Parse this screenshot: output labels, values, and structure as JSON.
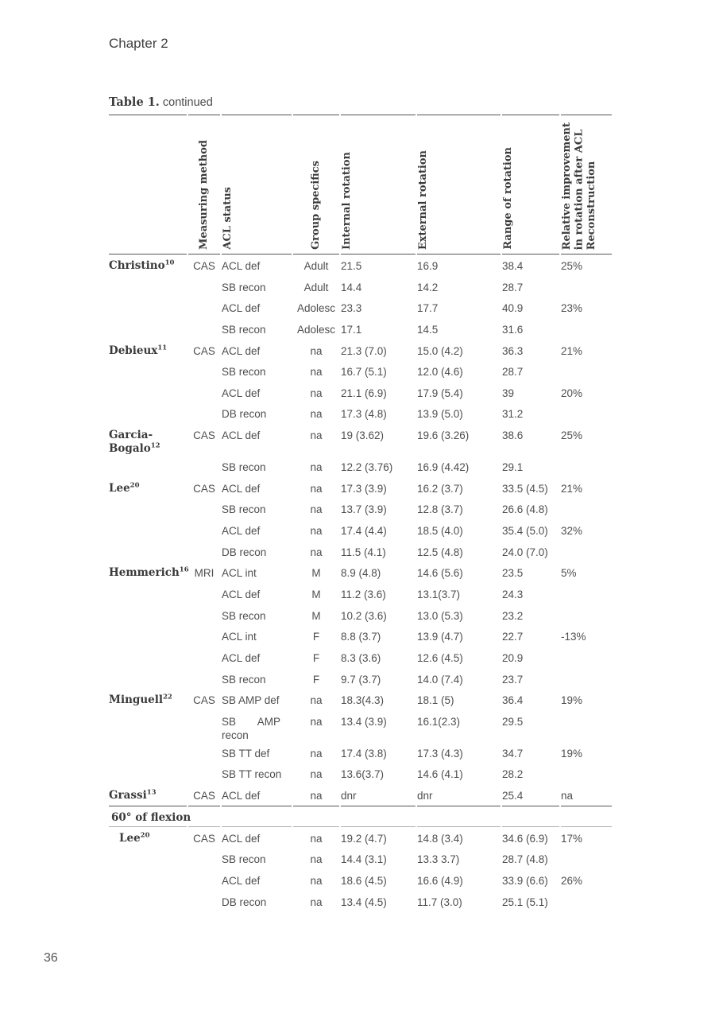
{
  "page": {
    "chapter": "Chapter 2",
    "number": "36"
  },
  "table": {
    "title": "Table 1.",
    "subtitle": "continued",
    "columns": [
      "",
      "Measuring method",
      "ACL status",
      "Group specifics",
      "Internal rotation",
      "External rotation",
      "Range of rotation",
      "Relative improvement\nin rotation after ACL\nReconstruction"
    ],
    "rows": [
      {
        "study": "Christino",
        "sup": "10",
        "method": "CAS",
        "status": "ACL def",
        "group": "Adult",
        "ir": "21.5",
        "er": "16.9",
        "rom": "38.4",
        "imp": "25%"
      },
      {
        "status": "SB recon",
        "group": "Adult",
        "ir": "14.4",
        "er": "14.2",
        "rom": "28.7",
        "imp": ""
      },
      {
        "status": "ACL def",
        "group": "Adolesc",
        "ir": "23.3",
        "er": "17.7",
        "rom": "40.9",
        "imp": "23%"
      },
      {
        "status": "SB recon",
        "group": "Adolesc",
        "ir": "17.1",
        "er": "14.5",
        "rom": "31.6",
        "imp": ""
      },
      {
        "study": "Debieux",
        "sup": "11",
        "method": "CAS",
        "status": "ACL def",
        "group": "na",
        "ir": "21.3 (7.0)",
        "er": "15.0 (4.2)",
        "rom": "36.3",
        "imp": "21%"
      },
      {
        "status": "SB recon",
        "group": "na",
        "ir": "16.7 (5.1)",
        "er": "12.0 (4.6)",
        "rom": "28.7",
        "imp": ""
      },
      {
        "status": "ACL def",
        "group": "na",
        "ir": "21.1 (6.9)",
        "er": "17.9 (5.4)",
        "rom": "39",
        "imp": "20%"
      },
      {
        "status": "DB recon",
        "group": "na",
        "ir": "17.3 (4.8)",
        "er": "13.9 (5.0)",
        "rom": "31.2",
        "imp": ""
      },
      {
        "study": "Garcia-\nBogalo",
        "sup": "12",
        "method": "CAS",
        "status": "ACL def",
        "group": "na",
        "ir": "19 (3.62)",
        "er": "19.6 (3.26)",
        "rom": "38.6",
        "imp": "25%"
      },
      {
        "status": "SB recon",
        "group": "na",
        "ir": "12.2 (3.76)",
        "er": "16.9 (4.42)",
        "rom": "29.1",
        "imp": ""
      },
      {
        "study": "Lee",
        "sup": "20",
        "method": "CAS",
        "status": "ACL def",
        "group": "na",
        "ir": "17.3 (3.9)",
        "er": "16.2 (3.7)",
        "rom": "33.5 (4.5)",
        "imp": "21%"
      },
      {
        "status": "SB recon",
        "group": "na",
        "ir": "13.7 (3.9)",
        "er": "12.8 (3.7)",
        "rom": "26.6 (4.8)",
        "imp": ""
      },
      {
        "status": "ACL def",
        "group": "na",
        "ir": "17.4 (4.4)",
        "er": "18.5 (4.0)",
        "rom": "35.4 (5.0)",
        "imp": "32%"
      },
      {
        "status": "DB recon",
        "group": "na",
        "ir": "11.5 (4.1)",
        "er": "12.5 (4.8)",
        "rom": "24.0 (7.0)",
        "imp": ""
      },
      {
        "study": "Hemmerich",
        "sup": "16",
        "method": "MRI",
        "status": "ACL int",
        "group": "M",
        "ir": "8.9 (4.8)",
        "er": "14.6 (5.6)",
        "rom": "23.5",
        "imp": "5%"
      },
      {
        "status": "ACL def",
        "group": "M",
        "ir": "11.2 (3.6)",
        "er": "13.1(3.7)",
        "rom": "24.3",
        "imp": ""
      },
      {
        "status": "SB recon",
        "group": "M",
        "ir": "10.2 (3.6)",
        "er": "13.0 (5.3)",
        "rom": "23.2",
        "imp": ""
      },
      {
        "status": "ACL int",
        "group": "F",
        "ir": "8.8 (3.7)",
        "er": "13.9 (4.7)",
        "rom": "22.7",
        "imp": "-13%"
      },
      {
        "status": "ACL def",
        "group": "F",
        "ir": "8.3 (3.6)",
        "er": "12.6 (4.5)",
        "rom": "20.9",
        "imp": ""
      },
      {
        "status": "SB recon",
        "group": "F",
        "ir": "9.7 (3.7)",
        "er": "14.0 (7.4)",
        "rom": "23.7",
        "imp": ""
      },
      {
        "study": "Minguell",
        "sup": "22",
        "method": "CAS",
        "status": "SB AMP def",
        "group": "na",
        "ir": "18.3(4.3)",
        "er": "18.1 (5)",
        "rom": "36.4",
        "imp": "19%"
      },
      {
        "status": "SB AMP\nrecon",
        "justify": true,
        "group": "na",
        "ir": "13.4 (3.9)",
        "er": "16.1(2.3)",
        "rom": "29.5",
        "imp": ""
      },
      {
        "status": "SB TT def",
        "group": "na",
        "ir": "17.4 (3.8)",
        "er": "17.3 (4.3)",
        "rom": "34.7",
        "imp": "19%"
      },
      {
        "status": "SB TT recon",
        "group": "na",
        "ir": "13.6(3.7)",
        "er": "14.6 (4.1)",
        "rom": "28.2",
        "imp": ""
      },
      {
        "study": "Grassi",
        "sup": "13",
        "method": "CAS",
        "status": "ACL def",
        "group": "na",
        "ir": "dnr",
        "er": "dnr",
        "rom": "25.4",
        "imp": "na"
      },
      {
        "section": "60° of flexion"
      },
      {
        "study": "Lee",
        "sup": "20",
        "indent": true,
        "method": "CAS",
        "status": "ACL def",
        "group": "na",
        "ir": "19.2 (4.7)",
        "er": "14.8 (3.4)",
        "rom": "34.6 (6.9)",
        "imp": "17%"
      },
      {
        "status": "SB recon",
        "group": "na",
        "ir": "14.4 (3.1)",
        "er": "13.3 3.7)",
        "rom": "28.7 (4.8)",
        "imp": ""
      },
      {
        "status": "ACL def",
        "group": "na",
        "ir": "18.6 (4.5)",
        "er": "16.6 (4.9)",
        "rom": "33.9 (6.6)",
        "imp": "26%"
      },
      {
        "status": "DB recon",
        "group": "na",
        "ir": "13.4 (4.5)",
        "er": "11.7 (3.0)",
        "rom": "25.1 (5.1)",
        "imp": ""
      }
    ]
  }
}
